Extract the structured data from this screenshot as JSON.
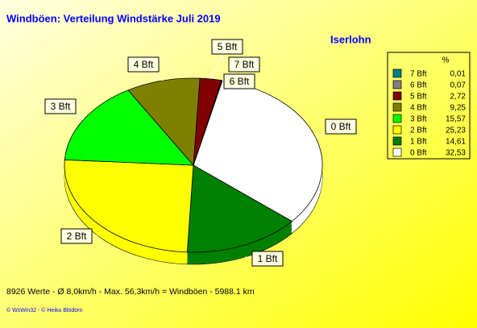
{
  "chart_data": {
    "type": "pie",
    "title": "Windböen: Verteilung Windstärke  Juli 2019",
    "location": "Iserlohn",
    "legend_title": "%",
    "categories": [
      "7 Bft",
      "6 Bft",
      "5 Bft",
      "4 Bft",
      "3 Bft",
      "2 Bft",
      "1 Bft",
      "0 Bft"
    ],
    "values": [
      0.01,
      0.07,
      2.72,
      9.25,
      15.57,
      25.23,
      14.61,
      32.53
    ],
    "value_labels": [
      "0,01",
      "0,07",
      "2,72",
      "9,25",
      "15,57",
      "25,23",
      "14,61",
      "32,53"
    ],
    "colors": [
      "#008080",
      "#808080",
      "#800000",
      "#808000",
      "#00ff00",
      "#ffff00",
      "#008000",
      "#ffffff"
    ],
    "annotations": [
      "8926 Werte   -   Ø 8,0km/h  -  Max. 56,3km/h = Windböen   -   5988.1 km",
      "© WsWin32  -  © Heiko Blödorn"
    ]
  }
}
